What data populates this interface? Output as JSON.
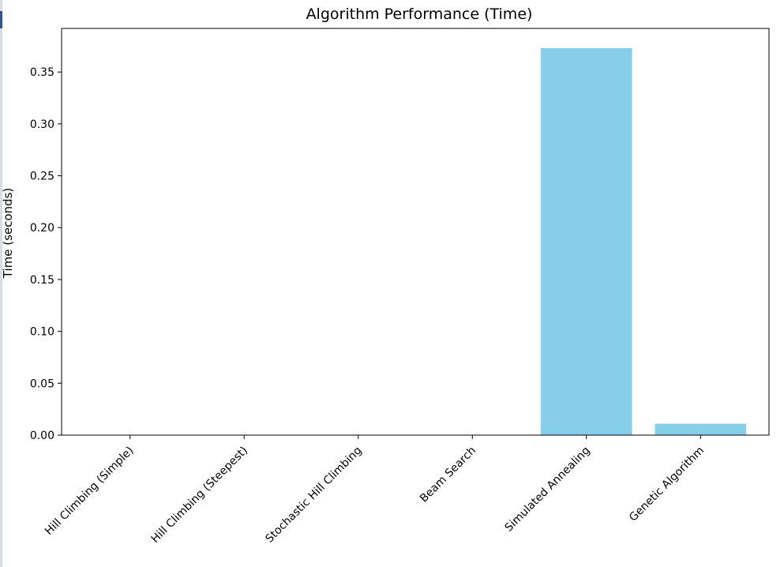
{
  "chart_data": {
    "type": "bar",
    "title": "Algorithm Performance (Time)",
    "xlabel": "",
    "ylabel": "Time (seconds)",
    "categories": [
      "Hill Climbing (Simple)",
      "Hill Climbing (Steepest)",
      "Stochastic Hill Climbing",
      "Beam Search",
      "Simulated Annealing",
      "Genetic Algorithm"
    ],
    "values": [
      0.0,
      0.0,
      0.0,
      0.0,
      0.373,
      0.011
    ],
    "ylim": [
      0,
      0.392
    ],
    "yticks": [
      "0.00",
      "0.05",
      "0.10",
      "0.15",
      "0.20",
      "0.25",
      "0.30",
      "0.35"
    ],
    "grid": false,
    "colors": {
      "bar": "#87ceeb",
      "axis": "#000000",
      "text": "#000000",
      "background": "#ffffff"
    }
  }
}
